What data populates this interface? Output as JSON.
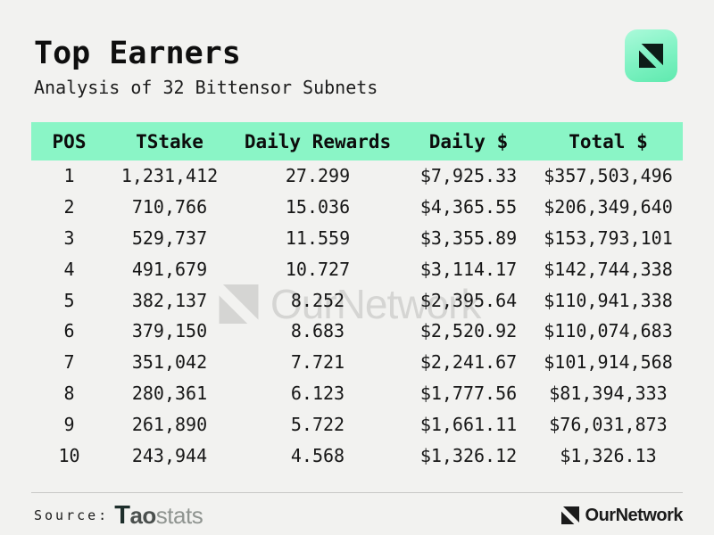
{
  "header": {
    "title": "Top Earners",
    "subtitle": "Analysis of 32 Bittensor Subnets"
  },
  "watermark": {
    "text": "OurNetwork"
  },
  "chart_data": {
    "type": "table",
    "title": "Top Earners",
    "subtitle": "Analysis of 32 Bittensor Subnets",
    "columns": [
      "POS",
      "TStake",
      "Daily Rewards",
      "Daily $",
      "Total $"
    ],
    "rows": [
      [
        "1",
        "1,231,412",
        "27.299",
        "$7,925.33",
        "$357,503,496"
      ],
      [
        "2",
        "710,766",
        "15.036",
        "$4,365.55",
        "$206,349,640"
      ],
      [
        "3",
        "529,737",
        "11.559",
        "$3,355.89",
        "$153,793,101"
      ],
      [
        "4",
        "491,679",
        "10.727",
        "$3,114.17",
        "$142,744,338"
      ],
      [
        "5",
        "382,137",
        "8.252",
        "$2,395.64",
        "$110,941,338"
      ],
      [
        "6",
        "379,150",
        "8.683",
        "$2,520.92",
        "$110,074,683"
      ],
      [
        "7",
        "351,042",
        "7.721",
        "$2,241.67",
        "$101,914,568"
      ],
      [
        "8",
        "280,361",
        "6.123",
        "$1,777.56",
        "$81,394,333"
      ],
      [
        "9",
        "261,890",
        "5.722",
        "$1,661.11",
        "$76,031,873"
      ],
      [
        "10",
        "243,944",
        "4.568",
        "$1,326.12",
        "$1,326.13"
      ]
    ]
  },
  "footer": {
    "source_label": "Source:",
    "source_brand_t": "T",
    "source_brand_ao": "ao",
    "source_brand_stats": "stats",
    "brand": "OurNetwork"
  },
  "colors": {
    "page_bg": "#f2f2f0",
    "table_header_bg": "#8af5c6",
    "icon_gradient_start": "#abfada",
    "icon_gradient_end": "#5fe9ae",
    "watermark": "#d5d5d3",
    "text": "#141414"
  }
}
